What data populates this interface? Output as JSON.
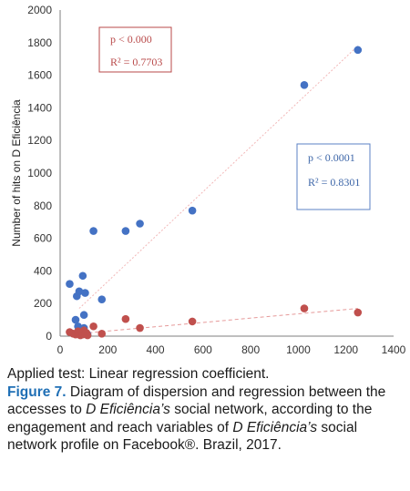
{
  "chart_data": {
    "type": "scatter",
    "title": "",
    "xlabel": "",
    "ylabel": "Number of hits on D Eficiência",
    "xlim": [
      0,
      1400
    ],
    "ylim": [
      0,
      2000
    ],
    "xticks": [
      0,
      200,
      400,
      600,
      800,
      1000,
      1200,
      1400
    ],
    "yticks": [
      0,
      200,
      400,
      600,
      800,
      1000,
      1200,
      1400,
      1600,
      1800,
      2000
    ],
    "grid": false,
    "series": [
      {
        "color": "#4472c4",
        "points": [
          [
            40,
            320
          ],
          [
            65,
            100
          ],
          [
            70,
            245
          ],
          [
            75,
            60
          ],
          [
            80,
            275
          ],
          [
            90,
            25
          ],
          [
            95,
            370
          ],
          [
            100,
            50
          ],
          [
            100,
            130
          ],
          [
            105,
            265
          ],
          [
            110,
            15
          ],
          [
            115,
            10
          ],
          [
            140,
            645
          ],
          [
            175,
            225
          ],
          [
            275,
            645
          ],
          [
            335,
            690
          ],
          [
            555,
            770
          ],
          [
            1025,
            1540
          ],
          [
            1250,
            1755
          ]
        ],
        "fit": {
          "x": [
            80,
            1250
          ],
          "y": [
            170,
            1780
          ]
        },
        "annotation": {
          "p": "p < 0.0001",
          "r2": "R² = 0.8301"
        }
      },
      {
        "color": "#c0504d",
        "points": [
          [
            40,
            25
          ],
          [
            55,
            15
          ],
          [
            65,
            10
          ],
          [
            75,
            30
          ],
          [
            80,
            20
          ],
          [
            85,
            5
          ],
          [
            90,
            25
          ],
          [
            95,
            10
          ],
          [
            100,
            35
          ],
          [
            105,
            15
          ],
          [
            110,
            20
          ],
          [
            115,
            5
          ],
          [
            140,
            60
          ],
          [
            175,
            15
          ],
          [
            275,
            105
          ],
          [
            335,
            50
          ],
          [
            555,
            90
          ],
          [
            1025,
            170
          ],
          [
            1250,
            145
          ]
        ],
        "fit": {
          "x": [
            40,
            1250
          ],
          "y": [
            10,
            170
          ]
        },
        "annotation": {
          "p": "p < 0.000",
          "r2": "R² = 0.7703"
        }
      }
    ]
  },
  "caption": {
    "applied_test": "Applied test: Linear regression coefficient.",
    "figure_label": "Figure 7.",
    "text_1": " Diagram of dispersion and regression between the accesses to ",
    "italic_1": "D Eficiência’s",
    "text_2": " social network, according to the engagement and reach variables of ",
    "italic_2": "D Eficiência’s",
    "text_3": " social network profile on Facebook®. Brazil, 2017."
  }
}
